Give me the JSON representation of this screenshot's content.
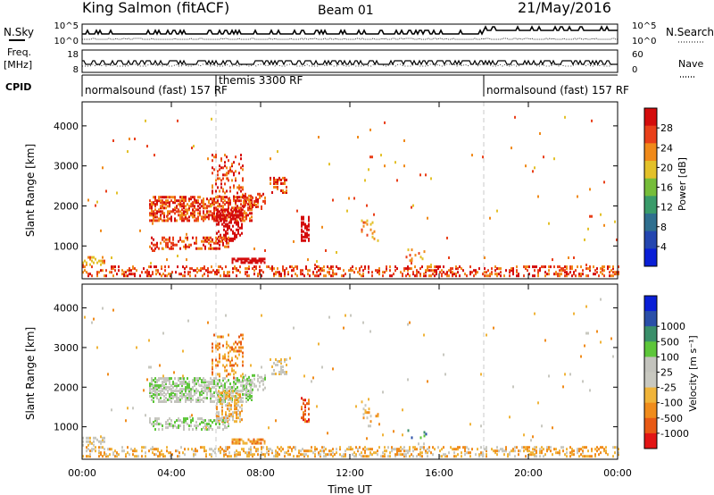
{
  "header": {
    "station": "King Salmon (fitACF)",
    "beam": "Beam 01",
    "date": "21/May/2016"
  },
  "left_labels": {
    "nsky": "N.Sky",
    "freq": "Freq.",
    "freq_unit": "[MHz]",
    "cpid": "CPID"
  },
  "right_labels": {
    "nsearch": "N.Search",
    "nave": "Nave"
  },
  "noise_ticks": [
    "10^5",
    "10^0"
  ],
  "freq_ticks": [
    "18",
    "8"
  ],
  "nave_ticks": [
    "60",
    "0"
  ],
  "cpid_segments": [
    {
      "label": "normalsound (fast)  157 RF",
      "start_hour": 0
    },
    {
      "label": "themis 3300 RF",
      "start_hour": 6
    },
    {
      "label": "normalsound (fast)  157 RF",
      "start_hour": 18
    }
  ],
  "colors": {
    "power": [
      "#0a1fd6",
      "#2446b0",
      "#2f6f8f",
      "#3a9b6a",
      "#76bd3a",
      "#e3c12a",
      "#f08a1a",
      "#e9401a",
      "#d40c0c"
    ],
    "velocity": [
      "#e21515",
      "#e85a15",
      "#f08c1c",
      "#f0b43a",
      "#c8c8c0",
      "#c3c3bd",
      "#5dc63a",
      "#3a8f6a",
      "#2a4fa8",
      "#0a1fd6"
    ]
  },
  "chart_data": [
    {
      "type": "heatmap",
      "panel": "power",
      "xlabel": "",
      "ylabel": "Slant Range [km]",
      "xlim_hours": [
        0,
        24
      ],
      "ylim_km": [
        180,
        4600
      ],
      "yticks": [
        "1000",
        "2000",
        "3000",
        "4000"
      ],
      "colorbar": {
        "label": "Power [dB]",
        "ticks": [
          "4",
          "8",
          "12",
          "16",
          "20",
          "24",
          "28"
        ],
        "range": [
          0,
          32
        ]
      },
      "regions": [
        {
          "t0": 3.0,
          "t1": 7.6,
          "r0": 1600,
          "r1": 2200,
          "density": 0.55,
          "level": 7
        },
        {
          "t0": 6.0,
          "t1": 7.2,
          "r0": 1100,
          "r1": 1900,
          "density": 0.45,
          "level": 10
        },
        {
          "t0": 3.0,
          "t1": 6.6,
          "r0": 900,
          "r1": 1200,
          "density": 0.35,
          "level": 7
        },
        {
          "t0": 5.8,
          "t1": 7.2,
          "r0": 2200,
          "r1": 3300,
          "density": 0.2,
          "level": 7
        },
        {
          "t0": 6.7,
          "t1": 8.2,
          "r0": 550,
          "r1": 650,
          "density": 0.7,
          "level": 13
        },
        {
          "t0": 7.2,
          "t1": 8.2,
          "r0": 1900,
          "r1": 2300,
          "density": 0.35,
          "level": 7
        },
        {
          "t0": 8.4,
          "t1": 9.2,
          "r0": 2300,
          "r1": 2700,
          "density": 0.4,
          "level": 7
        },
        {
          "t0": 9.8,
          "t1": 10.2,
          "r0": 1100,
          "r1": 1700,
          "density": 0.5,
          "level": 11
        },
        {
          "t0": 12.5,
          "t1": 13.3,
          "r0": 1100,
          "r1": 1600,
          "density": 0.12,
          "level": 6
        },
        {
          "t0": 14.5,
          "t1": 15.5,
          "r0": 600,
          "r1": 900,
          "density": 0.1,
          "level": 6
        },
        {
          "t0": 0.0,
          "t1": 24.0,
          "r0": 220,
          "r1": 480,
          "density": 0.3,
          "level": 7
        },
        {
          "t0": 0.0,
          "t1": 1.0,
          "r0": 500,
          "r1": 700,
          "density": 0.35,
          "level": 6
        },
        {
          "t0": 0.0,
          "t1": 24.0,
          "r0": 400,
          "r1": 4200,
          "density": 0.004,
          "level": 6
        }
      ]
    },
    {
      "type": "heatmap",
      "panel": "velocity",
      "xlabel": "Time UT",
      "ylabel": "Slant Range [km]",
      "xlim_hours": [
        0,
        24
      ],
      "ylim_km": [
        180,
        4600
      ],
      "xticks": [
        "00:00",
        "04:00",
        "08:00",
        "12:00",
        "16:00",
        "20:00",
        "00:00"
      ],
      "yticks": [
        "1000",
        "2000",
        "3000",
        "4000"
      ],
      "colorbar": {
        "label": "Velocity [m s⁻¹]",
        "ticks": [
          "-1000",
          "-500",
          "-100",
          "-25",
          "25",
          "100",
          "500",
          "1000"
        ]
      },
      "regions": [
        {
          "t0": 3.0,
          "t1": 7.6,
          "r0": 1600,
          "r1": 2200,
          "density": 0.55,
          "level": 5
        },
        {
          "t0": 6.0,
          "t1": 7.2,
          "r0": 1100,
          "r1": 1900,
          "density": 0.45,
          "level": 3
        },
        {
          "t0": 3.0,
          "t1": 6.6,
          "r0": 900,
          "r1": 1200,
          "density": 0.35,
          "level": 5
        },
        {
          "t0": 5.8,
          "t1": 7.2,
          "r0": 2200,
          "r1": 3300,
          "density": 0.2,
          "level": 2
        },
        {
          "t0": 6.7,
          "t1": 8.2,
          "r0": 550,
          "r1": 650,
          "density": 0.7,
          "level": 2
        },
        {
          "t0": 7.2,
          "t1": 8.2,
          "r0": 1900,
          "r1": 2300,
          "density": 0.35,
          "level": 5
        },
        {
          "t0": 8.4,
          "t1": 9.2,
          "r0": 2300,
          "r1": 2700,
          "density": 0.4,
          "level": 4
        },
        {
          "t0": 9.8,
          "t1": 10.2,
          "r0": 1100,
          "r1": 1700,
          "density": 0.5,
          "level": 1
        },
        {
          "t0": 12.5,
          "t1": 13.3,
          "r0": 1100,
          "r1": 1600,
          "density": 0.12,
          "level": 3
        },
        {
          "t0": 14.5,
          "t1": 15.5,
          "r0": 600,
          "r1": 900,
          "density": 0.1,
          "level": 7
        },
        {
          "t0": 0.0,
          "t1": 24.0,
          "r0": 220,
          "r1": 480,
          "density": 0.3,
          "level": 3
        },
        {
          "t0": 0.0,
          "t1": 1.0,
          "r0": 500,
          "r1": 700,
          "density": 0.35,
          "level": 4
        },
        {
          "t0": 0.0,
          "t1": 24.0,
          "r0": 400,
          "r1": 4200,
          "density": 0.004,
          "level": 3
        }
      ]
    }
  ]
}
